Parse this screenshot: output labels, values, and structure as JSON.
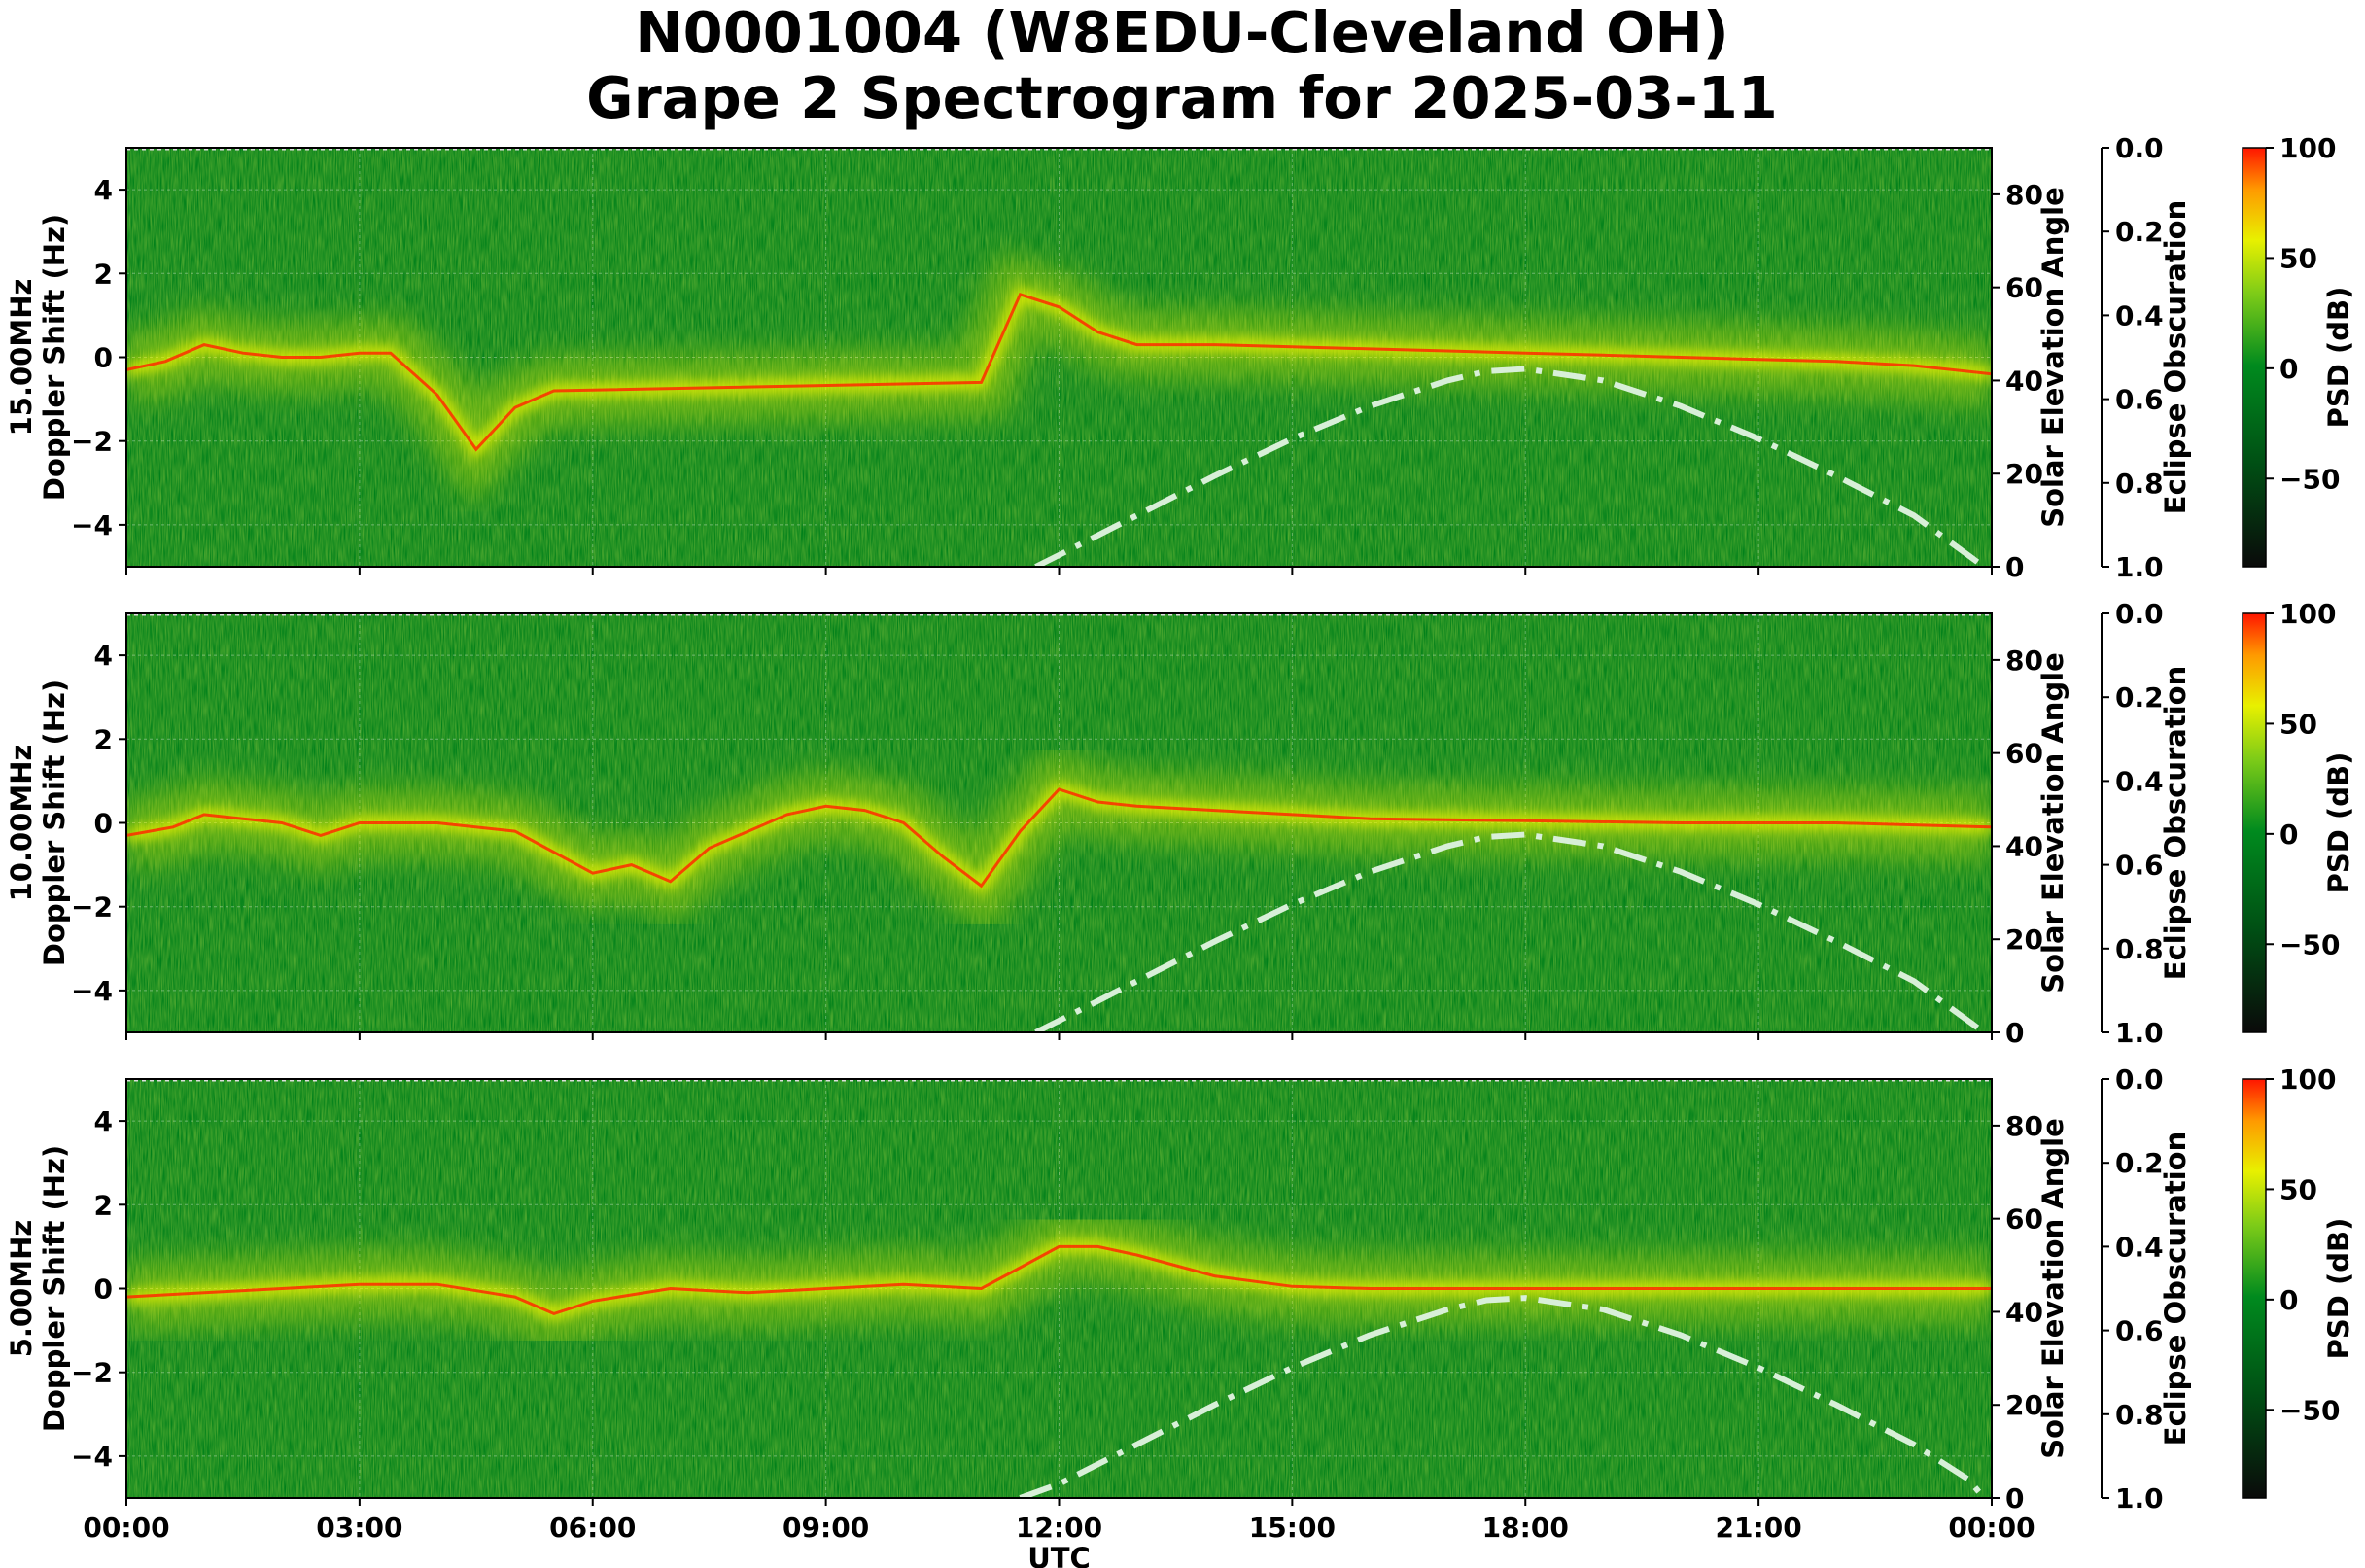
{
  "figure": {
    "title_line1": "N0001004 (W8EDU-Cleveland OH)",
    "title_line2": "Grape 2 Spectrogram for 2025-03-11"
  },
  "colors": {
    "background_green": "#00801a",
    "signal_yellow": "#e8f000",
    "signal_red": "#ff2a00",
    "elevation_curve": "#d8efd8"
  },
  "chart_data": [
    {
      "type": "heatmap",
      "frequency_label": "15.00MHz",
      "ylabel": "Doppler Shift (Hz)",
      "xlabel": "",
      "ylim": [
        -5,
        5
      ],
      "x_range": [
        "00:00",
        "00:00"
      ],
      "x_ticks": [
        "00:00",
        "03:00",
        "06:00",
        "09:00",
        "12:00",
        "15:00",
        "18:00",
        "21:00",
        "00:00"
      ],
      "y_ticks": [
        "4",
        "2",
        "0",
        "−2",
        "−4"
      ],
      "right_axis_1": {
        "label": "Solar Elevation Angle",
        "range": [
          0,
          90
        ],
        "ticks": [
          "0",
          "20",
          "40",
          "60",
          "80"
        ]
      },
      "right_axis_2": {
        "label": "Eclipse Obscuration",
        "range": [
          1.0,
          0.0
        ],
        "ticks": [
          "0.0",
          "0.2",
          "0.4",
          "0.6",
          "0.8",
          "1.0"
        ]
      },
      "colorbar": {
        "label": "PSD (dB)",
        "ticks": [
          "100",
          "50",
          "0",
          "−50"
        ],
        "range": [
          -90,
          100
        ]
      },
      "doppler_trace": [
        [
          0,
          -0.3
        ],
        [
          0.5,
          -0.1
        ],
        [
          1,
          0.3
        ],
        [
          1.5,
          0.1
        ],
        [
          2,
          0
        ],
        [
          2.5,
          0
        ],
        [
          3,
          0.1
        ],
        [
          3.4,
          0.1
        ],
        [
          4,
          -0.9
        ],
        [
          4.5,
          -2.2
        ],
        [
          5,
          -1.2
        ],
        [
          5.5,
          -0.8
        ],
        [
          11,
          -0.6
        ],
        [
          11.5,
          1.5
        ],
        [
          12,
          1.2
        ],
        [
          12.5,
          0.6
        ],
        [
          13,
          0.3
        ],
        [
          14,
          0.3
        ],
        [
          15,
          0.25
        ],
        [
          16,
          0.2
        ],
        [
          17,
          0.15
        ],
        [
          18,
          0.1
        ],
        [
          19,
          0.05
        ],
        [
          20,
          0
        ],
        [
          21,
          -0.05
        ],
        [
          22,
          -0.1
        ],
        [
          23,
          -0.2
        ],
        [
          24,
          -0.4
        ]
      ],
      "solar_elevation": [
        [
          11.7,
          0
        ],
        [
          12,
          2.5
        ],
        [
          13,
          11
        ],
        [
          14,
          19.5
        ],
        [
          15,
          27.5
        ],
        [
          16,
          34.5
        ],
        [
          17,
          40
        ],
        [
          17.5,
          42
        ],
        [
          18,
          42.5
        ],
        [
          19,
          40
        ],
        [
          20,
          34.5
        ],
        [
          21,
          27.5
        ],
        [
          22,
          19.5
        ],
        [
          23,
          11
        ],
        [
          23.9,
          0
        ]
      ]
    },
    {
      "type": "heatmap",
      "frequency_label": "10.00MHz",
      "ylabel": "Doppler Shift (Hz)",
      "xlabel": "",
      "ylim": [
        -5,
        5
      ],
      "x_range": [
        "00:00",
        "00:00"
      ],
      "x_ticks": [
        "00:00",
        "03:00",
        "06:00",
        "09:00",
        "12:00",
        "15:00",
        "18:00",
        "21:00",
        "00:00"
      ],
      "y_ticks": [
        "4",
        "2",
        "0",
        "−2",
        "−4"
      ],
      "right_axis_1": {
        "label": "Solar Elevation Angle",
        "range": [
          0,
          90
        ],
        "ticks": [
          "0",
          "20",
          "40",
          "60",
          "80"
        ]
      },
      "right_axis_2": {
        "label": "Eclipse Obscuration",
        "range": [
          1.0,
          0.0
        ],
        "ticks": [
          "0.0",
          "0.2",
          "0.4",
          "0.6",
          "0.8",
          "1.0"
        ]
      },
      "colorbar": {
        "label": "PSD (dB)",
        "ticks": [
          "100",
          "50",
          "0",
          "−50"
        ],
        "range": [
          -90,
          100
        ]
      },
      "doppler_trace": [
        [
          0,
          -0.3
        ],
        [
          0.6,
          -0.1
        ],
        [
          1,
          0.2
        ],
        [
          1.5,
          0.1
        ],
        [
          2,
          0
        ],
        [
          2.5,
          -0.3
        ],
        [
          3,
          0
        ],
        [
          3.5,
          0
        ],
        [
          4,
          0
        ],
        [
          5,
          -0.2
        ],
        [
          5.3,
          -0.5
        ],
        [
          6,
          -1.2
        ],
        [
          6.5,
          -1
        ],
        [
          7,
          -1.4
        ],
        [
          7.5,
          -0.6
        ],
        [
          8.5,
          0.2
        ],
        [
          9,
          0.4
        ],
        [
          9.5,
          0.3
        ],
        [
          10,
          0
        ],
        [
          10.5,
          -0.8
        ],
        [
          11,
          -1.5
        ],
        [
          11.5,
          -0.2
        ],
        [
          12,
          0.8
        ],
        [
          12.5,
          0.5
        ],
        [
          13,
          0.4
        ],
        [
          14,
          0.3
        ],
        [
          15,
          0.2
        ],
        [
          16,
          0.1
        ],
        [
          18,
          0.05
        ],
        [
          20,
          0
        ],
        [
          22,
          0
        ],
        [
          24,
          -0.1
        ]
      ],
      "solar_elevation": [
        [
          11.7,
          0
        ],
        [
          12,
          2.5
        ],
        [
          13,
          11
        ],
        [
          14,
          19.5
        ],
        [
          15,
          27.5
        ],
        [
          16,
          34.5
        ],
        [
          17,
          40
        ],
        [
          17.5,
          42
        ],
        [
          18,
          42.5
        ],
        [
          19,
          40
        ],
        [
          20,
          34.5
        ],
        [
          21,
          27.5
        ],
        [
          22,
          19.5
        ],
        [
          23,
          11
        ],
        [
          23.9,
          0
        ]
      ]
    },
    {
      "type": "heatmap",
      "frequency_label": "5.00MHz",
      "ylabel": "Doppler Shift (Hz)",
      "xlabel": "UTC",
      "ylim": [
        -5,
        5
      ],
      "x_range": [
        "00:00",
        "00:00"
      ],
      "x_ticks": [
        "00:00",
        "03:00",
        "06:00",
        "09:00",
        "12:00",
        "15:00",
        "18:00",
        "21:00",
        "00:00"
      ],
      "y_ticks": [
        "4",
        "2",
        "0",
        "−2",
        "−4"
      ],
      "right_axis_1": {
        "label": "Solar Elevation Angle",
        "range": [
          0,
          90
        ],
        "ticks": [
          "0",
          "20",
          "40",
          "60",
          "80"
        ]
      },
      "right_axis_2": {
        "label": "Eclipse Obscuration",
        "range": [
          1.0,
          0.0
        ],
        "ticks": [
          "0.0",
          "0.2",
          "0.4",
          "0.6",
          "0.8",
          "1.0"
        ]
      },
      "colorbar": {
        "label": "PSD (dB)",
        "ticks": [
          "100",
          "50",
          "0",
          "−50"
        ],
        "range": [
          -90,
          100
        ]
      },
      "doppler_trace": [
        [
          0,
          -0.2
        ],
        [
          1,
          -0.1
        ],
        [
          2,
          0
        ],
        [
          3,
          0.1
        ],
        [
          4,
          0.1
        ],
        [
          5,
          -0.2
        ],
        [
          5.5,
          -0.6
        ],
        [
          6,
          -0.3
        ],
        [
          7,
          0
        ],
        [
          8,
          -0.1
        ],
        [
          9,
          0
        ],
        [
          10,
          0.1
        ],
        [
          11,
          0
        ],
        [
          11.5,
          0.5
        ],
        [
          12,
          1
        ],
        [
          12.5,
          1
        ],
        [
          13,
          0.8
        ],
        [
          14,
          0.3
        ],
        [
          15,
          0.05
        ],
        [
          16,
          0
        ],
        [
          18,
          0
        ],
        [
          20,
          0
        ],
        [
          22,
          0
        ],
        [
          24,
          0
        ]
      ],
      "solar_elevation": [
        [
          11.5,
          0
        ],
        [
          12,
          3
        ],
        [
          13,
          11.5
        ],
        [
          14,
          20
        ],
        [
          15,
          28
        ],
        [
          16,
          35
        ],
        [
          17,
          40.5
        ],
        [
          17.5,
          42.5
        ],
        [
          18,
          43
        ],
        [
          19,
          40.5
        ],
        [
          20,
          35
        ],
        [
          21,
          28
        ],
        [
          22,
          20
        ],
        [
          23,
          11.5
        ],
        [
          23.7,
          4
        ],
        [
          23.9,
          0
        ]
      ]
    }
  ]
}
